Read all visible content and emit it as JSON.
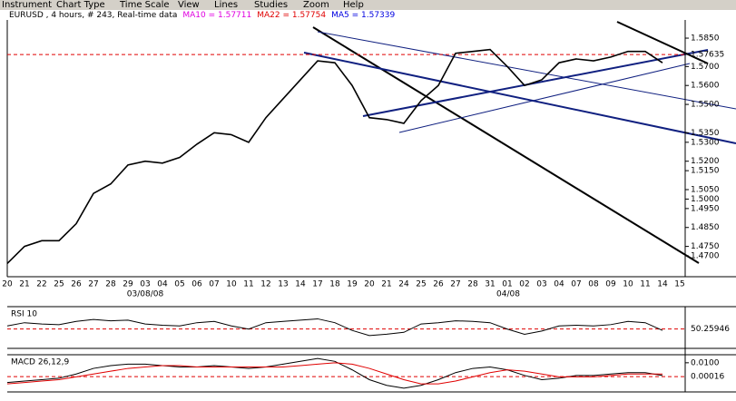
{
  "menu": [
    "Instrument",
    "Chart Type",
    "Time Scale",
    "View",
    "Lines",
    "Studies",
    "Zoom",
    "Help"
  ],
  "chart_data": [
    {
      "type": "line",
      "title": "EURUSD , 4 hours, # 243, Real-time data",
      "indicators": [
        {
          "name": "MA10 = 1.57711",
          "color": "#e000e0"
        },
        {
          "name": "MA22 = 1.57754",
          "color": "#e00000"
        },
        {
          "name": "MA5 = 1.57339",
          "color": "#0000e0"
        }
      ],
      "categories": [
        "20",
        "21",
        "22",
        "25",
        "26",
        "27",
        "28",
        "29",
        "03",
        "04",
        "05",
        "06",
        "07",
        "10",
        "11",
        "12",
        "13",
        "14",
        "17",
        "18",
        "19",
        "20",
        "21",
        "24",
        "25",
        "26",
        "27",
        "28",
        "31",
        "01",
        "02",
        "03",
        "04",
        "07",
        "08",
        "09",
        "10",
        "11",
        "14",
        "15"
      ],
      "period_labels": [
        "03/08/08",
        "04/08"
      ],
      "series": [
        {
          "color": "#000000",
          "values": [
            1.466,
            1.475,
            1.478,
            1.478,
            1.487,
            1.503,
            1.508,
            1.518,
            1.52,
            1.519,
            1.522,
            1.529,
            1.535,
            1.534,
            1.53,
            1.543,
            1.553,
            1.563,
            1.573,
            1.572,
            1.56,
            1.543,
            1.542,
            1.54,
            1.552,
            1.56,
            1.577,
            1.578,
            1.579,
            1.57,
            1.56,
            1.563,
            1.572,
            1.574,
            1.573,
            1.575,
            1.578,
            1.578,
            1.572,
            null
          ]
        }
      ],
      "ylim": [
        1.459,
        1.5946
      ],
      "yticks": [
        {
          "value": 1.585,
          "label": "1.5850"
        },
        {
          "value": 1.57,
          "label": "1.5700"
        },
        {
          "value": 1.56,
          "label": "1.5600"
        },
        {
          "value": 1.55,
          "label": "1.5500"
        },
        {
          "value": 1.535,
          "label": "1.5350"
        },
        {
          "value": 1.53,
          "label": "1.5300"
        },
        {
          "value": 1.52,
          "label": "1.5200"
        },
        {
          "value": 1.515,
          "label": "1.5150"
        },
        {
          "value": 1.505,
          "label": "1.5050"
        },
        {
          "value": 1.5,
          "label": "1.5000"
        },
        {
          "value": 1.495,
          "label": "1.4950"
        },
        {
          "value": 1.485,
          "label": "1.4850"
        },
        {
          "value": 1.475,
          "label": "1.4750"
        },
        {
          "value": 1.47,
          "label": "1.4700"
        }
      ],
      "current": {
        "value": 1.57635,
        "label": "1.57635",
        "color": "#e00000"
      }
    },
    {
      "type": "line",
      "title": "RSI 10",
      "series": [
        {
          "color": "#000000",
          "values": [
            55,
            60,
            58,
            57,
            62,
            65,
            63,
            64,
            58,
            56,
            55,
            60,
            62,
            55,
            50,
            60,
            62,
            64,
            66,
            60,
            48,
            40,
            42,
            45,
            58,
            60,
            63,
            62,
            60,
            50,
            42,
            47,
            55,
            56,
            55,
            57,
            62,
            60,
            48,
            null
          ]
        }
      ],
      "ylim": [
        20,
        85
      ],
      "current": {
        "value": 50.25946,
        "label": "50.25946",
        "color": "#e00000"
      }
    },
    {
      "type": "line",
      "title": "MACD 26,12,9",
      "series": [
        {
          "color": "#000000",
          "values": [
            -0.004,
            -0.003,
            -0.002,
            -0.001,
            0.002,
            0.006,
            0.008,
            0.009,
            0.009,
            0.008,
            0.007,
            0.007,
            0.008,
            0.007,
            0.006,
            0.007,
            0.009,
            0.011,
            0.013,
            0.011,
            0.005,
            -0.002,
            -0.006,
            -0.008,
            -0.006,
            -0.002,
            0.003,
            0.006,
            0.007,
            0.005,
            0.001,
            -0.002,
            -0.001,
            0.001,
            0.001,
            0.002,
            0.003,
            0.003,
            0.001,
            null
          ]
        },
        {
          "color": "#e00000",
          "values": [
            -0.005,
            -0.004,
            -0.003,
            -0.002,
            0.0,
            0.002,
            0.004,
            0.006,
            0.007,
            0.008,
            0.008,
            0.007,
            0.007,
            0.007,
            0.007,
            0.007,
            0.007,
            0.008,
            0.009,
            0.01,
            0.009,
            0.006,
            0.002,
            -0.002,
            -0.005,
            -0.005,
            -0.003,
            0.0,
            0.003,
            0.005,
            0.004,
            0.002,
            0.0,
            0.0,
            0.0,
            0.001,
            0.002,
            0.002,
            0.002,
            null
          ]
        }
      ],
      "ylim": [
        -0.0107,
        0.0157
      ],
      "yticks": [
        {
          "value": 0.01,
          "label": "0.0100"
        }
      ],
      "current": {
        "value": 0.00016,
        "label": "0.00016",
        "color": "#e00000"
      }
    }
  ]
}
